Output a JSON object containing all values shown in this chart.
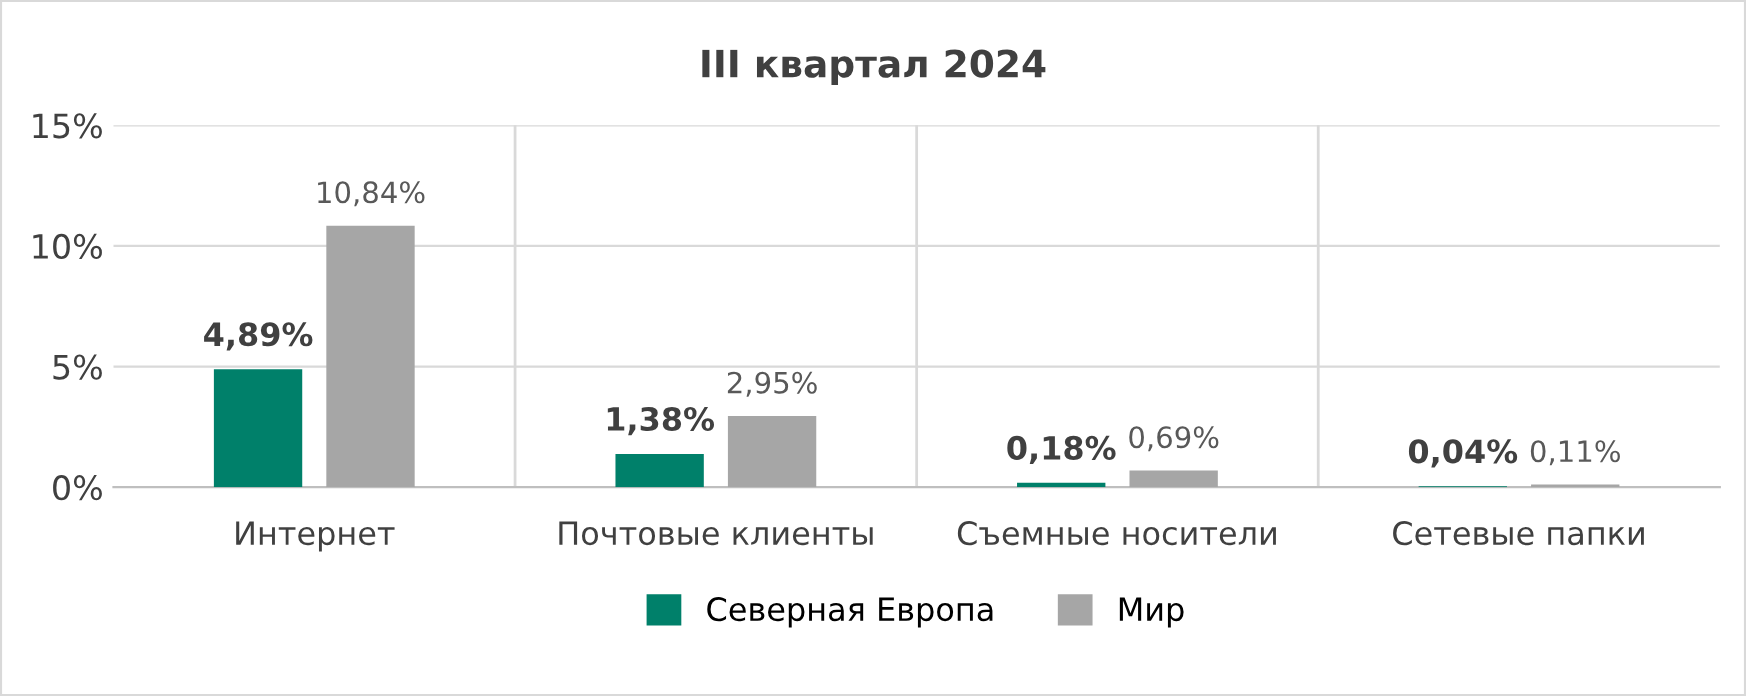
{
  "chart_data": {
    "type": "bar",
    "title": "III квартал 2024",
    "categories": [
      "Интернет",
      "Почтовые клиенты",
      "Съемные носители",
      "Сетевые папки"
    ],
    "series": [
      {
        "name": "Северная Европа",
        "color": "#00806a",
        "values": [
          4.89,
          1.38,
          0.18,
          0.04
        ],
        "value_labels": [
          "4,89%",
          "1,38%",
          "0,18%",
          "0,04%"
        ]
      },
      {
        "name": "Мир",
        "color": "#a6a6a6",
        "values": [
          10.84,
          2.95,
          0.69,
          0.11
        ],
        "value_labels": [
          "10,84%",
          "2,95%",
          "0,69%",
          "0,11%"
        ]
      }
    ],
    "ylim": [
      0,
      15
    ],
    "yticks": [
      {
        "value": 0,
        "label": "0%"
      },
      {
        "value": 5,
        "label": "5%"
      },
      {
        "value": 10,
        "label": "10%"
      },
      {
        "value": 15,
        "label": "15%"
      }
    ],
    "grid": true,
    "legend": "bottom"
  }
}
